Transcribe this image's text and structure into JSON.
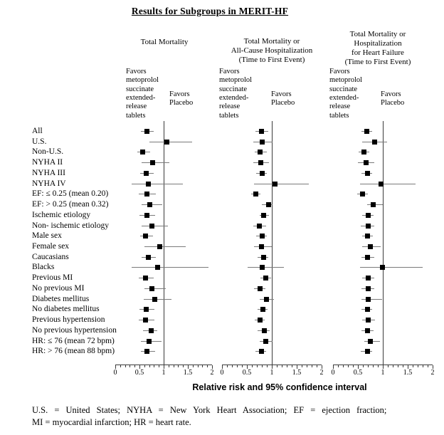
{
  "title": "Results for Subgroups in MERIT-HF",
  "axis_label": "Relative risk and 95% confidence interval",
  "footnote_lines": [
    "U.S. = United States; NYHA = New York Heart Association; EF = ejection fraction;",
    "MI = myocardial infarction; HR = heart rate."
  ],
  "chart_data": {
    "type": "forest",
    "x_axis": {
      "min": 0,
      "max": 2,
      "major_ticks": [
        0,
        0.5,
        1,
        1.5,
        2
      ],
      "tick_labels": [
        "0",
        "0.5",
        "1",
        "1.5",
        "2"
      ],
      "minor_step": 0.1,
      "reference_line": 1,
      "label": "Relative risk and 95% confidence interval"
    },
    "favors_left_lines": [
      "Favors",
      "metoprolol",
      "succinate",
      "extended-",
      "release",
      "tablets"
    ],
    "favors_right_lines": [
      "Favors",
      "Placebo"
    ],
    "subgroups": [
      "All",
      "U.S.",
      "Non-U.S.",
      "NYHA II",
      "NYHA III",
      "NYHA IV",
      "EF: ≤ 0.25 (mean 0.20)",
      "EF: > 0.25 (mean 0.32)",
      "Ischemic etiology",
      "Non- ischemic etiology",
      "Male sex",
      "Female sex",
      "Caucasians",
      "Blacks",
      "Previous MI",
      "No previous MI",
      "Diabetes mellitus",
      "No diabetes mellitus",
      "Previous hypertension",
      "No previous hypertension",
      "HR: ≤ 76 (mean 72 bpm)",
      "HR: > 76 (mean 88 bpm)"
    ],
    "panels": [
      {
        "header_lines": [
          "Total Mortality"
        ],
        "estimates": [
          {
            "rr": 0.65,
            "lo": 0.53,
            "hi": 0.79
          },
          {
            "rr": 1.07,
            "lo": 0.71,
            "hi": 1.59
          },
          {
            "rr": 0.56,
            "lo": 0.46,
            "hi": 0.72
          },
          {
            "rr": 0.77,
            "lo": 0.54,
            "hi": 1.11
          },
          {
            "rr": 0.64,
            "lo": 0.52,
            "hi": 0.8
          },
          {
            "rr": 0.69,
            "lo": 0.34,
            "hi": 1.4
          },
          {
            "rr": 0.65,
            "lo": 0.49,
            "hi": 0.85
          },
          {
            "rr": 0.71,
            "lo": 0.54,
            "hi": 0.97
          },
          {
            "rr": 0.65,
            "lo": 0.5,
            "hi": 0.83
          },
          {
            "rr": 0.76,
            "lo": 0.54,
            "hi": 1.09
          },
          {
            "rr": 0.63,
            "lo": 0.51,
            "hi": 0.78
          },
          {
            "rr": 0.92,
            "lo": 0.61,
            "hi": 1.46
          },
          {
            "rr": 0.68,
            "lo": 0.54,
            "hi": 0.83
          },
          {
            "rr": 0.87,
            "lo": 0.34,
            "hi": 1.93
          },
          {
            "rr": 0.63,
            "lo": 0.49,
            "hi": 0.8
          },
          {
            "rr": 0.76,
            "lo": 0.6,
            "hi": 1.04
          },
          {
            "rr": 0.81,
            "lo": 0.59,
            "hi": 1.17
          },
          {
            "rr": 0.64,
            "lo": 0.5,
            "hi": 0.81
          },
          {
            "rr": 0.63,
            "lo": 0.49,
            "hi": 0.82
          },
          {
            "rr": 0.74,
            "lo": 0.58,
            "hi": 0.88
          },
          {
            "rr": 0.7,
            "lo": 0.53,
            "hi": 0.95
          },
          {
            "rr": 0.66,
            "lo": 0.53,
            "hi": 0.83
          }
        ]
      },
      {
        "header_lines": [
          "Total Mortality or",
          "All-Cause Hospitalization",
          "(Time to First Event)"
        ],
        "estimates": [
          {
            "rr": 0.79,
            "lo": 0.67,
            "hi": 0.93
          },
          {
            "rr": 0.81,
            "lo": 0.63,
            "hi": 1.02
          },
          {
            "rr": 0.76,
            "lo": 0.65,
            "hi": 0.89
          },
          {
            "rr": 0.78,
            "lo": 0.63,
            "hi": 0.94
          },
          {
            "rr": 0.81,
            "lo": 0.69,
            "hi": 0.91
          },
          {
            "rr": 1.06,
            "lo": 0.64,
            "hi": 1.74
          },
          {
            "rr": 0.68,
            "lo": 0.59,
            "hi": 0.77
          },
          {
            "rr": 0.93,
            "lo": 0.8,
            "hi": 1.01
          },
          {
            "rr": 0.84,
            "lo": 0.75,
            "hi": 0.94
          },
          {
            "rr": 0.75,
            "lo": 0.63,
            "hi": 0.88
          },
          {
            "rr": 0.8,
            "lo": 0.68,
            "hi": 0.89
          },
          {
            "rr": 0.79,
            "lo": 0.64,
            "hi": 0.99
          },
          {
            "rr": 0.83,
            "lo": 0.72,
            "hi": 0.94
          },
          {
            "rr": 0.81,
            "lo": 0.51,
            "hi": 1.24
          },
          {
            "rr": 0.88,
            "lo": 0.77,
            "hi": 0.99
          },
          {
            "rr": 0.76,
            "lo": 0.64,
            "hi": 0.87
          },
          {
            "rr": 0.89,
            "lo": 0.75,
            "hi": 1.04
          },
          {
            "rr": 0.82,
            "lo": 0.71,
            "hi": 0.91
          },
          {
            "rr": 0.76,
            "lo": 0.66,
            "hi": 0.86
          },
          {
            "rr": 0.85,
            "lo": 0.72,
            "hi": 0.96
          },
          {
            "rr": 0.88,
            "lo": 0.75,
            "hi": 1.01
          },
          {
            "rr": 0.79,
            "lo": 0.67,
            "hi": 0.88
          }
        ]
      },
      {
        "header_lines": [
          "Total Mortality or",
          "Hospitalization",
          "for Heart Failure",
          "(Time to First Event)"
        ],
        "estimates": [
          {
            "rr": 0.68,
            "lo": 0.57,
            "hi": 0.79
          },
          {
            "rr": 0.83,
            "lo": 0.58,
            "hi": 1.08
          },
          {
            "rr": 0.62,
            "lo": 0.51,
            "hi": 0.72
          },
          {
            "rr": 0.67,
            "lo": 0.5,
            "hi": 0.83
          },
          {
            "rr": 0.69,
            "lo": 0.57,
            "hi": 0.79
          },
          {
            "rr": 0.96,
            "lo": 0.54,
            "hi": 1.65
          },
          {
            "rr": 0.59,
            "lo": 0.49,
            "hi": 0.7
          },
          {
            "rr": 0.8,
            "lo": 0.68,
            "hi": 0.99
          },
          {
            "rr": 0.71,
            "lo": 0.59,
            "hi": 0.82
          },
          {
            "rr": 0.7,
            "lo": 0.56,
            "hi": 0.83
          },
          {
            "rr": 0.69,
            "lo": 0.58,
            "hi": 0.79
          },
          {
            "rr": 0.75,
            "lo": 0.59,
            "hi": 0.96
          },
          {
            "rr": 0.69,
            "lo": 0.57,
            "hi": 0.82
          },
          {
            "rr": 0.99,
            "lo": 0.54,
            "hi": 1.79
          },
          {
            "rr": 0.71,
            "lo": 0.59,
            "hi": 0.83
          },
          {
            "rr": 0.7,
            "lo": 0.57,
            "hi": 0.82
          },
          {
            "rr": 0.71,
            "lo": 0.57,
            "hi": 0.98
          },
          {
            "rr": 0.69,
            "lo": 0.57,
            "hi": 0.79
          },
          {
            "rr": 0.71,
            "lo": 0.59,
            "hi": 0.84
          },
          {
            "rr": 0.69,
            "lo": 0.57,
            "hi": 0.81
          },
          {
            "rr": 0.75,
            "lo": 0.63,
            "hi": 0.95
          },
          {
            "rr": 0.69,
            "lo": 0.56,
            "hi": 0.79
          }
        ]
      }
    ]
  }
}
